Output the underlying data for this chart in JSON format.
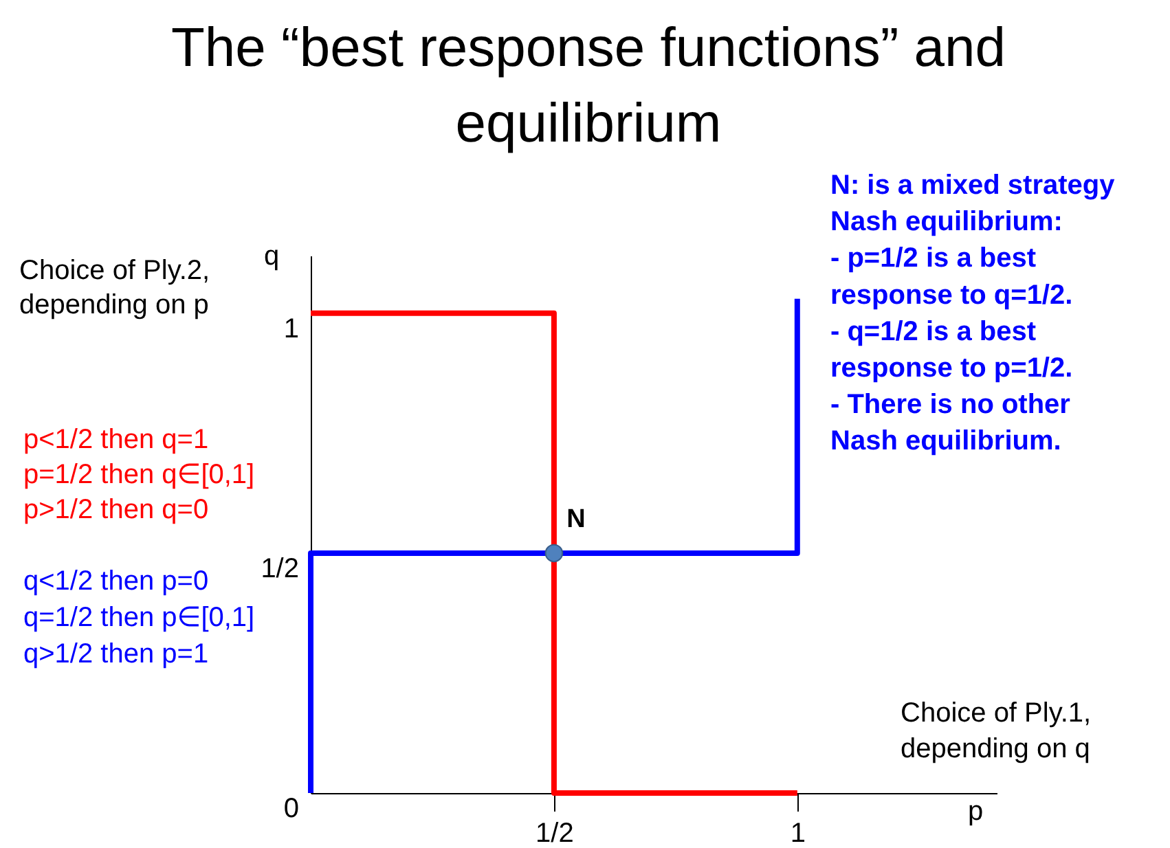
{
  "chart_data": {
    "type": "line",
    "title": "The “best response functions” and equilibrium",
    "xlabel": "p",
    "ylabel": "q",
    "xlim": [
      0,
      1.41
    ],
    "ylim": [
      0,
      1.12
    ],
    "xticks": [
      {
        "value": 0.5,
        "label": "1/2"
      },
      1
    ],
    "yticks": [
      0,
      {
        "value": 0.5,
        "label": "1/2"
      },
      1
    ],
    "series": [
      {
        "name": "p<1/2 then q=1\np=1/2 then q∈[0,1]\np>1/2 then q=0",
        "color": "#ff0000",
        "x": [
          0,
          0.5,
          0.5,
          1
        ],
        "values": [
          1,
          1,
          0,
          0
        ]
      },
      {
        "name": "q<1/2 then p=0\nq=1/2 then p∈[0,1]\nq>1/2 then p=1",
        "color": "#0000ff",
        "x": [
          0,
          0,
          1,
          1
        ],
        "values": [
          0,
          0.5,
          0.5,
          1.03
        ]
      },
      {
        "type": "scatter",
        "marker": "circle",
        "color": "#4f81bd",
        "x": [
          0.5
        ],
        "values": [
          0.5
        ]
      }
    ],
    "annotations": [
      "Choice of Ply.2, depending on p",
      "Choice of Ply.1, depending on q",
      "N: is a mixed strategy Nash equilibrium:\n- p=1/2 is a best response to q=1/2.\n- q=1/2 is a best response to p=1/2.\n- There is no other Nash equilibrium.",
      {
        "text": "N",
        "x": 0.5,
        "y": 0.5
      }
    ],
    "grid": false,
    "legend": false
  }
}
